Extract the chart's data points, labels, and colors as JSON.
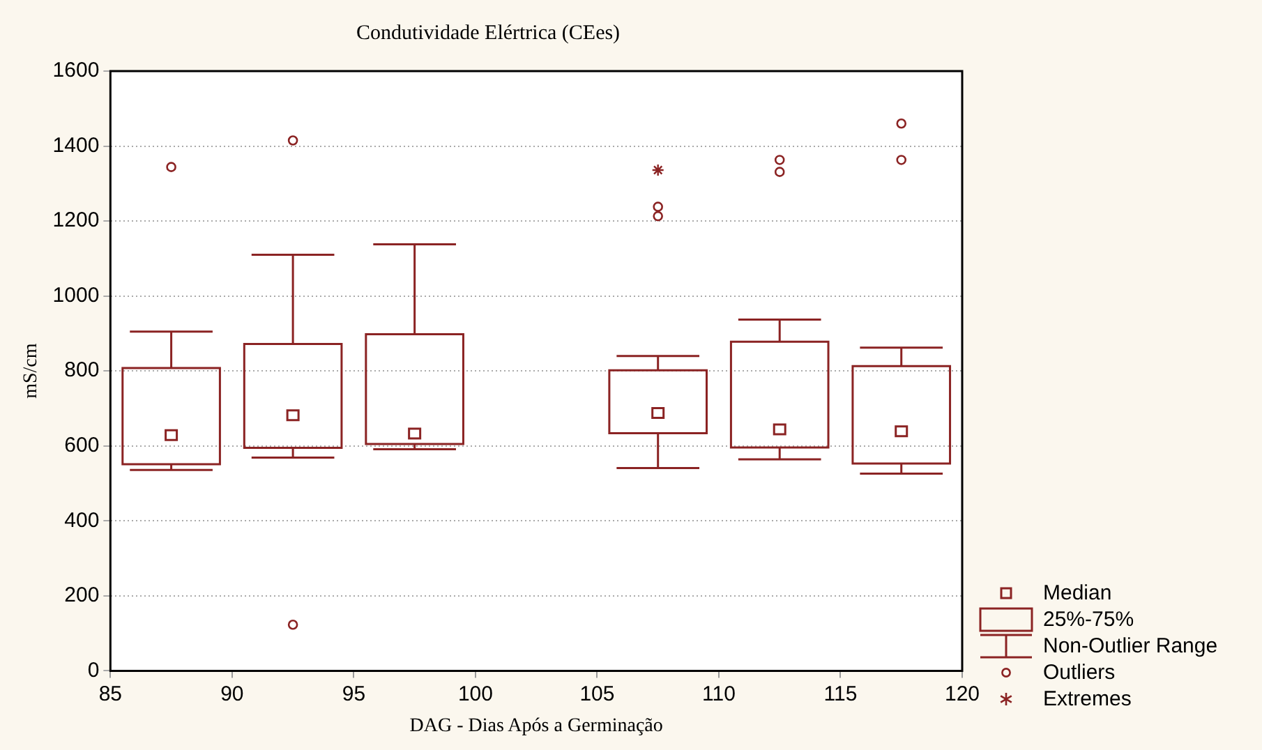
{
  "chart_data": {
    "type": "box",
    "title": "Condutividade Elértrica (CEes)",
    "xlabel": "DAG - Dias Após a Germinação",
    "ylabel": "mS/cm",
    "x": [
      87.5,
      92.5,
      97.5,
      107.5,
      112.5,
      117.5
    ],
    "series": [
      {
        "type": "box",
        "color": "#8b2323",
        "marker": "circle",
        "boxes": [
          {
            "low": 536,
            "q1": 551,
            "median": 629,
            "q3": 808,
            "high": 905,
            "outliers": [
              1344
            ]
          },
          {
            "low": 569,
            "q1": 595,
            "median": 682,
            "q3": 872,
            "high": 1110,
            "outliers": [
              1415,
              123
            ]
          },
          {
            "low": 591,
            "q1": 605,
            "median": 633,
            "q3": 898,
            "high": 1138
          },
          {
            "low": 541,
            "q1": 634,
            "median": 688,
            "q3": 802,
            "high": 840,
            "outliers": [
              1238,
              1213
            ]
          },
          {
            "low": 564,
            "q1": 596,
            "median": 644,
            "q3": 878,
            "high": 937,
            "outliers": [
              1363,
              1331
            ]
          },
          {
            "low": 526,
            "q1": 553,
            "median": 639,
            "q3": 813,
            "high": 862,
            "outliers": [
              1460,
              1363
            ]
          }
        ]
      },
      {
        "type": "scatter",
        "name": "Extremes",
        "color": "#8b2323",
        "marker": "cross",
        "x": [
          107.5
        ],
        "values": [
          1336
        ]
      }
    ],
    "xlim": [
      85,
      120
    ],
    "xticks": [
      85,
      90,
      95,
      100,
      105,
      110,
      115,
      120
    ],
    "ylim": [
      0,
      1600
    ],
    "yticks": [
      0,
      200,
      400,
      600,
      800,
      1000,
      1200,
      1400,
      1600
    ],
    "grid": "y",
    "legend": "bottom right",
    "annotations": [
      "Median",
      "25%-75%",
      "Non-Outlier Range",
      "Outliers"
    ]
  }
}
